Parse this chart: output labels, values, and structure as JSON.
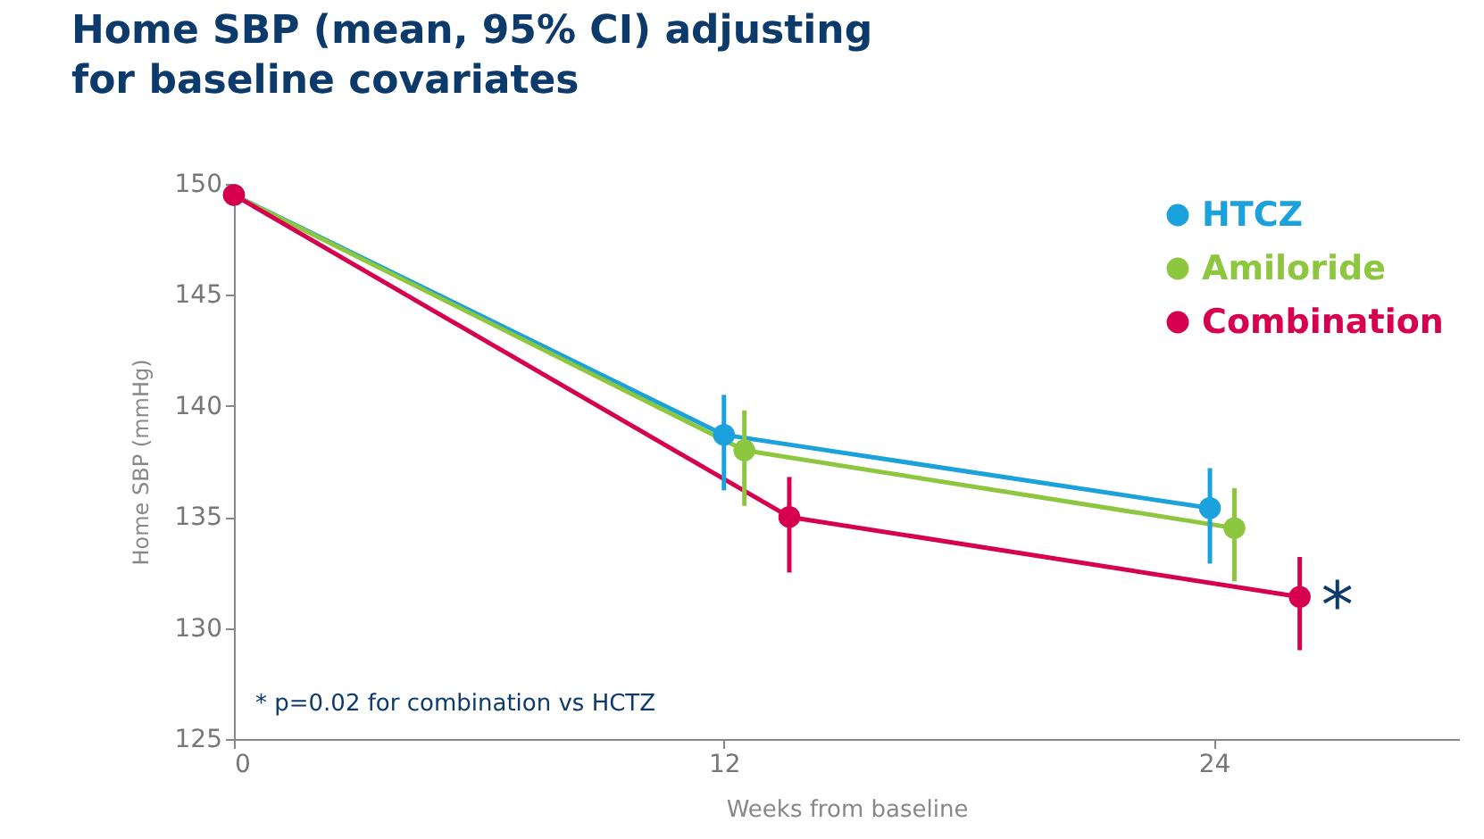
{
  "chart_data": {
    "type": "line",
    "title": "Home SBP (mean, 95% CI) adjusting for baseline covariates",
    "xlabel": "Weeks from baseline",
    "ylabel": "Home SBP (mmHg)",
    "xlim": [
      0,
      30
    ],
    "xticks": [
      0,
      12,
      24
    ],
    "ylim": [
      125,
      150
    ],
    "yticks": [
      125,
      130,
      135,
      140,
      145,
      150
    ],
    "grid": false,
    "legend": "top right",
    "marker": "circle",
    "series": [
      {
        "name": "HTCZ",
        "color": "#1ba1db",
        "x": [
          0,
          12.0,
          23.9
        ],
        "values": [
          149.5,
          138.7,
          135.4
        ],
        "errors": [
          null,
          [
            136.2,
            140.5
          ],
          [
            132.9,
            137.2
          ]
        ]
      },
      {
        "name": "Amiloride",
        "color": "#8dc63f",
        "x": [
          0,
          12.5,
          24.5
        ],
        "values": [
          149.5,
          138.0,
          134.5
        ],
        "errors": [
          null,
          [
            135.5,
            139.8
          ],
          [
            132.1,
            136.3
          ]
        ]
      },
      {
        "name": "Combination",
        "color": "#d6004f",
        "x": [
          0,
          13.6,
          26.1
        ],
        "values": [
          149.5,
          135.0,
          131.4
        ],
        "errors": [
          null,
          [
            132.5,
            136.8
          ],
          [
            129.0,
            133.2
          ]
        ]
      }
    ],
    "annotations": [
      "*",
      "* p=0.02 for combination vs HCTZ"
    ]
  }
}
